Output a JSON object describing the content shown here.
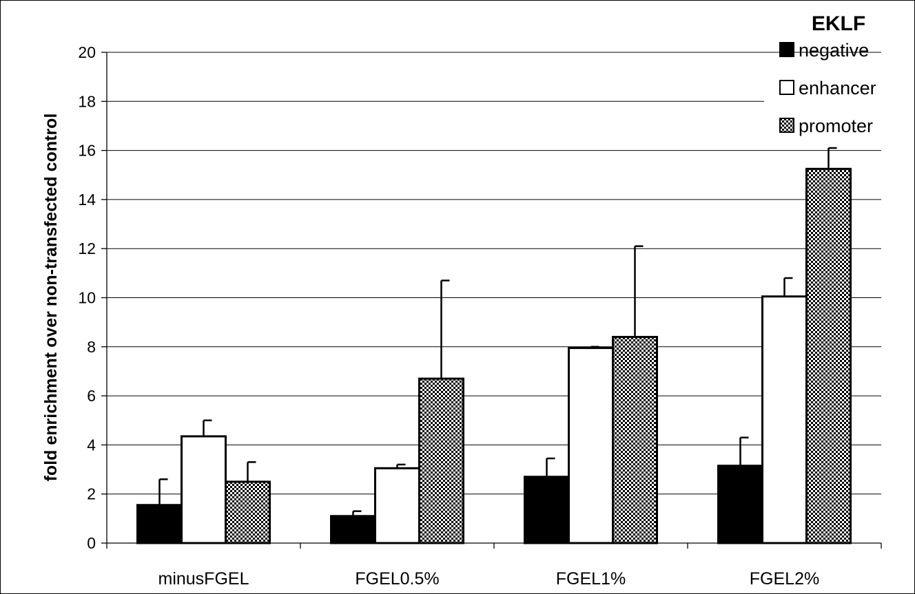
{
  "chart_data": {
    "type": "bar",
    "title": "",
    "xlabel": "",
    "ylabel": "fold enrichment over non-transfected control",
    "ylim": [
      0,
      20
    ],
    "yticks": [
      0,
      2,
      4,
      6,
      8,
      10,
      12,
      14,
      16,
      18,
      20
    ],
    "grid": true,
    "legend_title": "EKLF",
    "legend_position": "top-right",
    "categories": [
      "minusFGEL",
      "FGEL0.5%",
      "FGEL1%",
      "FGEL2%"
    ],
    "series": [
      {
        "name": "negative",
        "fill": "solid",
        "color": "#000000",
        "values": [
          1.55,
          1.1,
          2.7,
          3.15
        ],
        "errors": [
          1.05,
          0.2,
          0.75,
          1.15
        ]
      },
      {
        "name": "enhancer",
        "fill": "hollow",
        "color": "#ffffff",
        "values": [
          4.35,
          3.05,
          7.95,
          10.05
        ],
        "errors": [
          0.65,
          0.15,
          0.05,
          0.75
        ]
      },
      {
        "name": "promoter",
        "fill": "checker",
        "color": "#000000",
        "values": [
          2.5,
          6.7,
          8.4,
          15.25
        ],
        "errors": [
          0.8,
          4.0,
          3.7,
          0.85
        ]
      }
    ]
  }
}
